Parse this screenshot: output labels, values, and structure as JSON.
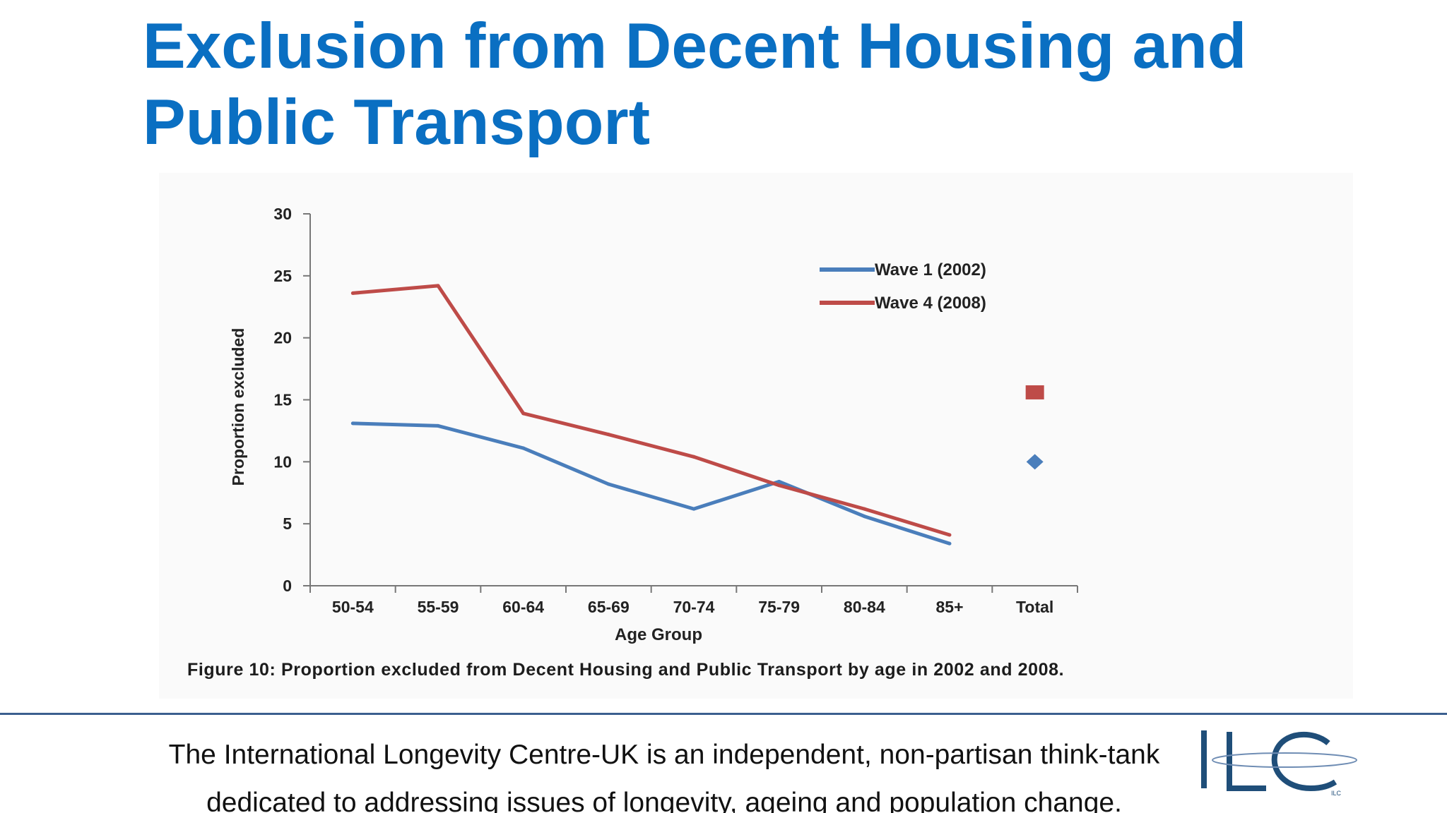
{
  "slide": {
    "title": "Exclusion from Decent Housing and Public Transport",
    "figure_caption": "Figure 10: Proportion excluded from Decent Housing and Public Transport by age in 2002 and 2008.",
    "footer_line1": "The International Longevity Centre-UK is an independent, non-partisan think-tank",
    "footer_line2": "dedicated to addressing issues of longevity, ageing and population change.",
    "logo_text": "ILC"
  },
  "colors": {
    "title": "#0a6fc2",
    "wave1": "#4a7ebb",
    "wave4": "#be4b48",
    "footer_rule": "#3b5f8f",
    "logo": "#1f4e79"
  },
  "chart_data": {
    "type": "line",
    "title": "",
    "xlabel": "Age Group",
    "ylabel": "Proportion excluded",
    "ylim": [
      0,
      30
    ],
    "yticks": [
      0,
      5,
      10,
      15,
      20,
      25,
      30
    ],
    "categories": [
      "50-54",
      "55-59",
      "60-64",
      "65-69",
      "70-74",
      "75-79",
      "80-84",
      "85+",
      "Total"
    ],
    "grid": false,
    "legend_position": "top-right",
    "series": [
      {
        "name": "Wave 1 (2002)",
        "color": "#4a7ebb",
        "values": [
          13.1,
          12.9,
          11.1,
          8.2,
          6.2,
          8.4,
          5.6,
          3.4,
          null
        ],
        "total": 10.0,
        "total_marker": "diamond"
      },
      {
        "name": "Wave 4 (2008)",
        "color": "#be4b48",
        "values": [
          23.6,
          24.2,
          13.9,
          12.2,
          10.4,
          8.1,
          6.2,
          4.1,
          null
        ],
        "total": 15.6,
        "total_marker": "square"
      }
    ]
  }
}
